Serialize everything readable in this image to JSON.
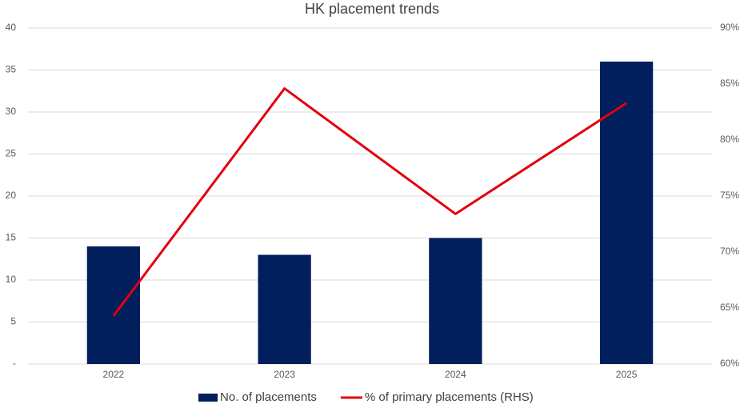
{
  "chart_data": {
    "type": "bar",
    "title": "HK placement trends",
    "categories": [
      "2022",
      "2023",
      "2024",
      "2025"
    ],
    "series": [
      {
        "name": "No. of placements",
        "type": "bar",
        "color": "#001f5c",
        "values": [
          14,
          13,
          15,
          36
        ]
      },
      {
        "name": "% of primary placements (RHS)",
        "type": "line",
        "axis": "y2",
        "color": "#e3000f",
        "values": [
          64.3,
          84.6,
          73.4,
          83.3
        ]
      }
    ],
    "ylim": [
      0,
      40
    ],
    "yticks": [
      {
        "value": 0,
        "label": "-"
      },
      5,
      10,
      15,
      20,
      25,
      30,
      35,
      40
    ],
    "y2lim": [
      60,
      90
    ],
    "y2ticks": [
      {
        "value": 60,
        "label": "60%"
      },
      {
        "value": 65,
        "label": "65%"
      },
      {
        "value": 70,
        "label": "70%"
      },
      {
        "value": 75,
        "label": "75%"
      },
      {
        "value": 80,
        "label": "80%"
      },
      {
        "value": 85,
        "label": "85%"
      },
      {
        "value": 90,
        "label": "90%"
      }
    ],
    "grid": true,
    "legend": "bottom"
  }
}
